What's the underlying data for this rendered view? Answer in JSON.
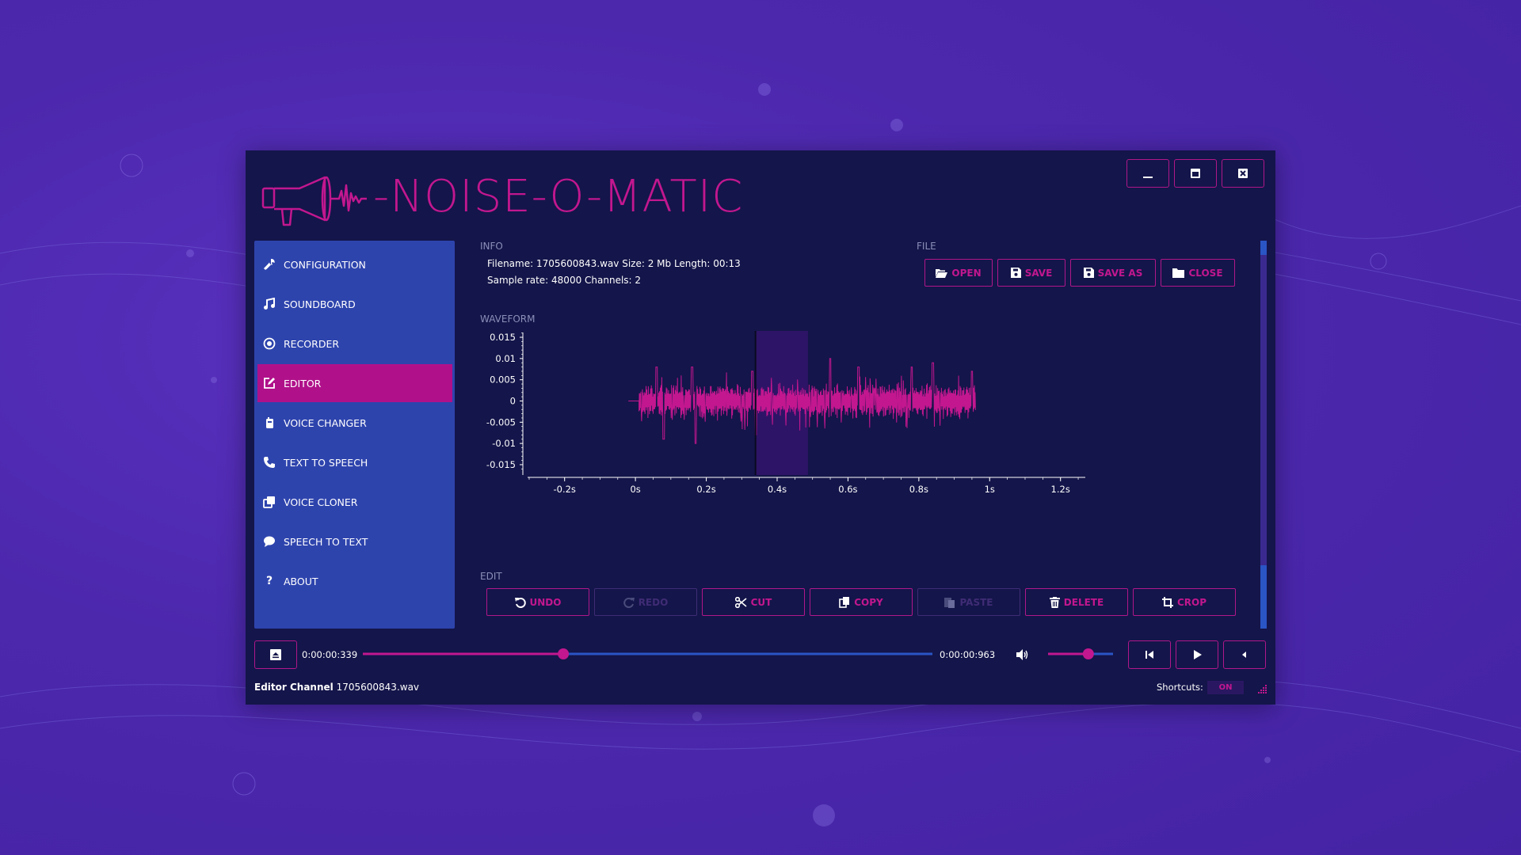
{
  "app": {
    "title": "-NOISE-O-MATIC"
  },
  "window_controls": {
    "minimize": "minimize",
    "maximize": "maximize",
    "close": "close"
  },
  "sidebar": {
    "items": [
      {
        "label": "CONFIGURATION",
        "icon": "wrench-icon"
      },
      {
        "label": "SOUNDBOARD",
        "icon": "music-note-icon"
      },
      {
        "label": "RECORDER",
        "icon": "record-icon"
      },
      {
        "label": "EDITOR",
        "icon": "edit-icon",
        "active": true
      },
      {
        "label": "VOICE CHANGER",
        "icon": "walkie-talkie-icon"
      },
      {
        "label": "TEXT TO SPEECH",
        "icon": "phone-icon"
      },
      {
        "label": "VOICE CLONER",
        "icon": "clone-icon"
      },
      {
        "label": "SPEECH TO TEXT",
        "icon": "speech-bubble-icon"
      },
      {
        "label": "ABOUT",
        "icon": "question-icon"
      }
    ]
  },
  "info": {
    "label": "INFO",
    "line1": "Filename: 1705600843.wav Size: 2 Mb Length: 00:13",
    "line2": "Sample rate: 48000 Channels: 2"
  },
  "file": {
    "label": "FILE",
    "open": "OPEN",
    "save": "SAVE",
    "save_as": "SAVE AS",
    "close": "CLOSE"
  },
  "waveform": {
    "label": "WAVEFORM"
  },
  "chart_data": {
    "type": "line",
    "title": "",
    "xlabel": "",
    "ylabel": "",
    "x_ticks": [
      "-0.2s",
      "0s",
      "0.2s",
      "0.4s",
      "0.6s",
      "0.8s",
      "1s",
      "1.2s"
    ],
    "x_tick_values": [
      -0.2,
      0,
      0.2,
      0.4,
      0.6,
      0.8,
      1.0,
      1.2
    ],
    "y_ticks": [
      "0.015",
      "0.01",
      "0.005",
      "0",
      "-0.005",
      "-0.01",
      "-0.015"
    ],
    "y_tick_values": [
      0.015,
      0.01,
      0.005,
      0,
      -0.005,
      -0.01,
      -0.015
    ],
    "xlim": [
      -0.3,
      1.27
    ],
    "ylim": [
      -0.0165,
      0.0165
    ],
    "signal_range": [
      0.01,
      0.96
    ],
    "selection": {
      "start": 0.339,
      "end": 0.487
    },
    "cursor": 0.339,
    "peaks": [
      {
        "x": 0.06,
        "y": 0.008
      },
      {
        "x": 0.08,
        "y": -0.009
      },
      {
        "x": 0.16,
        "y": 0.008
      },
      {
        "x": 0.17,
        "y": -0.01
      },
      {
        "x": 0.33,
        "y": 0.007
      },
      {
        "x": 0.34,
        "y": -0.008
      },
      {
        "x": 0.55,
        "y": 0.01
      },
      {
        "x": 0.63,
        "y": 0.008
      },
      {
        "x": 0.78,
        "y": 0.008
      },
      {
        "x": 0.84,
        "y": 0.009
      },
      {
        "x": 0.95,
        "y": 0.007
      }
    ],
    "color": "#c2178f",
    "selection_color": "#2e1466"
  },
  "edit": {
    "label": "EDIT",
    "undo": "UNDO",
    "redo": "REDO",
    "cut": "CUT",
    "copy": "COPY",
    "paste": "PASTE",
    "delete": "DELETE",
    "crop": "CROP"
  },
  "transport": {
    "current_time": "0:00:00:339",
    "end_time": "0:00:00:963",
    "position_fraction": 0.352,
    "volume_fraction": 0.62
  },
  "status": {
    "channel_label": "Editor Channel",
    "channel_file": "1705600843.wav",
    "shortcuts_label": "Shortcuts:",
    "shortcuts_value": "ON"
  },
  "colors": {
    "accent": "#c2178f",
    "window_bg": "#14154a",
    "sidebar_bg": "#2e44ad",
    "track": "#2a55c5",
    "background": "#4c28ad"
  }
}
